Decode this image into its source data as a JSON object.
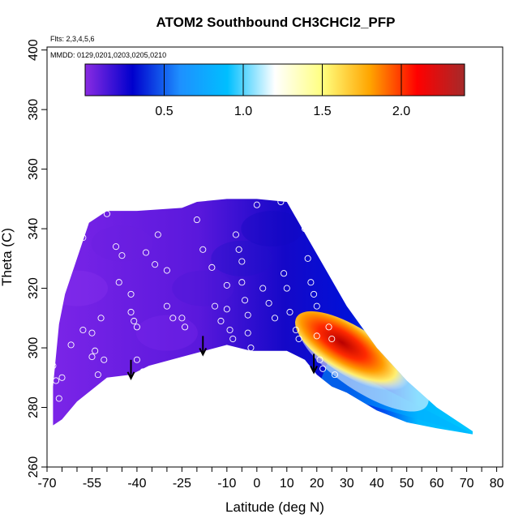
{
  "chart_data": {
    "type": "heatmap",
    "title": "ATOM2 Southbound CH3CHCl2_PFP",
    "flights_label": "Flts: 2,3,4,5,6",
    "dates_label": "MMDD: 0129,0201,0203,0205,0210",
    "xlabel": "Latitude (deg N)",
    "ylabel": "Theta (C)",
    "xlim": [
      -70,
      82
    ],
    "ylim": [
      260,
      401
    ],
    "x_ticks": [
      -70,
      -55,
      -40,
      -25,
      -10,
      0,
      10,
      20,
      30,
      40,
      50,
      60,
      70,
      80
    ],
    "x_minor_ticks": [
      -65,
      -60,
      -50,
      -45,
      -35,
      -30,
      -20,
      -15,
      -5,
      5,
      15,
      25,
      35,
      45,
      55,
      65,
      75
    ],
    "y_ticks": [
      260,
      280,
      300,
      320,
      340,
      360,
      380,
      400
    ],
    "colorbar": {
      "min": 0.0,
      "max": 2.4,
      "ticks": [
        0.5,
        1.0,
        1.5,
        2.0
      ],
      "tick_labels": [
        "0.5",
        "1.0",
        "1.5",
        "2.0"
      ],
      "colors": [
        "#8a2be2",
        "#0000cd",
        "#1e90ff",
        "#00bfff",
        "#ffffff",
        "#ffff80",
        "#ffa500",
        "#ff0000",
        "#a52a2a"
      ]
    },
    "envelope_lower": [
      [
        -68,
        274
      ],
      [
        -65,
        276
      ],
      [
        -60,
        282
      ],
      [
        -55,
        286
      ],
      [
        -50,
        290
      ],
      [
        -42,
        291
      ],
      [
        -36,
        294
      ],
      [
        -25,
        297
      ],
      [
        -10,
        301
      ],
      [
        -2,
        299
      ],
      [
        10,
        299
      ],
      [
        16,
        296
      ],
      [
        20,
        291
      ],
      [
        25,
        287
      ],
      [
        30,
        285
      ],
      [
        40,
        279
      ],
      [
        50,
        275
      ],
      [
        60,
        273
      ],
      [
        72,
        271
      ]
    ],
    "envelope_upper": [
      [
        -68,
        287
      ],
      [
        -66,
        308
      ],
      [
        -64,
        318
      ],
      [
        -60,
        330
      ],
      [
        -56,
        342
      ],
      [
        -50,
        346
      ],
      [
        -40,
        346
      ],
      [
        -25,
        347
      ],
      [
        -20,
        349
      ],
      [
        -10,
        350
      ],
      [
        0,
        350
      ],
      [
        10,
        349
      ],
      [
        14,
        342
      ],
      [
        18,
        335
      ],
      [
        22,
        328
      ],
      [
        26,
        321
      ],
      [
        30,
        314
      ],
      [
        40,
        300
      ],
      [
        50,
        289
      ],
      [
        60,
        280
      ],
      [
        72,
        272
      ]
    ],
    "plume": {
      "lat": [
        24,
        36
      ],
      "theta": [
        296,
        306
      ],
      "peak_value": 2.4
    },
    "arrows": [
      [
        -42,
        290
      ],
      [
        -18,
        298
      ],
      [
        19,
        292
      ]
    ],
    "samples": [
      [
        -68,
        294
      ],
      [
        -67,
        289
      ],
      [
        -66,
        283
      ],
      [
        -65,
        290
      ],
      [
        -62,
        301
      ],
      [
        -58,
        306
      ],
      [
        -55,
        297
      ],
      [
        -55,
        305
      ],
      [
        -54,
        299
      ],
      [
        -53,
        291
      ],
      [
        -52,
        310
      ],
      [
        -51,
        296
      ],
      [
        -58,
        337
      ],
      [
        -50,
        345
      ],
      [
        -47,
        334
      ],
      [
        -46,
        322
      ],
      [
        -45,
        331
      ],
      [
        -42,
        318
      ],
      [
        -42,
        312
      ],
      [
        -41,
        309
      ],
      [
        -40,
        307
      ],
      [
        -40,
        296
      ],
      [
        -38,
        292
      ],
      [
        -37,
        332
      ],
      [
        -34,
        328
      ],
      [
        -33,
        338
      ],
      [
        -30,
        326
      ],
      [
        -30,
        314
      ],
      [
        -28,
        310
      ],
      [
        -25,
        310
      ],
      [
        -24,
        307
      ],
      [
        -20,
        343
      ],
      [
        -18,
        333
      ],
      [
        -15,
        327
      ],
      [
        -14,
        314
      ],
      [
        -12,
        309
      ],
      [
        -10,
        321
      ],
      [
        -10,
        313
      ],
      [
        -9,
        306
      ],
      [
        -8,
        303
      ],
      [
        -8,
        298
      ],
      [
        -7,
        338
      ],
      [
        -6,
        333
      ],
      [
        -5,
        329
      ],
      [
        -5,
        322
      ],
      [
        -4,
        316
      ],
      [
        -3,
        311
      ],
      [
        -3,
        305
      ],
      [
        -2,
        300
      ],
      [
        0,
        348
      ],
      [
        2,
        320
      ],
      [
        4,
        315
      ],
      [
        6,
        310
      ],
      [
        8,
        349
      ],
      [
        9,
        325
      ],
      [
        10,
        320
      ],
      [
        11,
        312
      ],
      [
        13,
        306
      ],
      [
        14,
        303
      ],
      [
        16,
        340
      ],
      [
        17,
        330
      ],
      [
        18,
        322
      ],
      [
        19,
        318
      ],
      [
        20,
        314
      ],
      [
        20,
        304
      ],
      [
        21,
        296
      ],
      [
        22,
        293
      ],
      [
        24,
        307
      ],
      [
        25,
        303
      ],
      [
        26,
        291
      ]
    ]
  }
}
